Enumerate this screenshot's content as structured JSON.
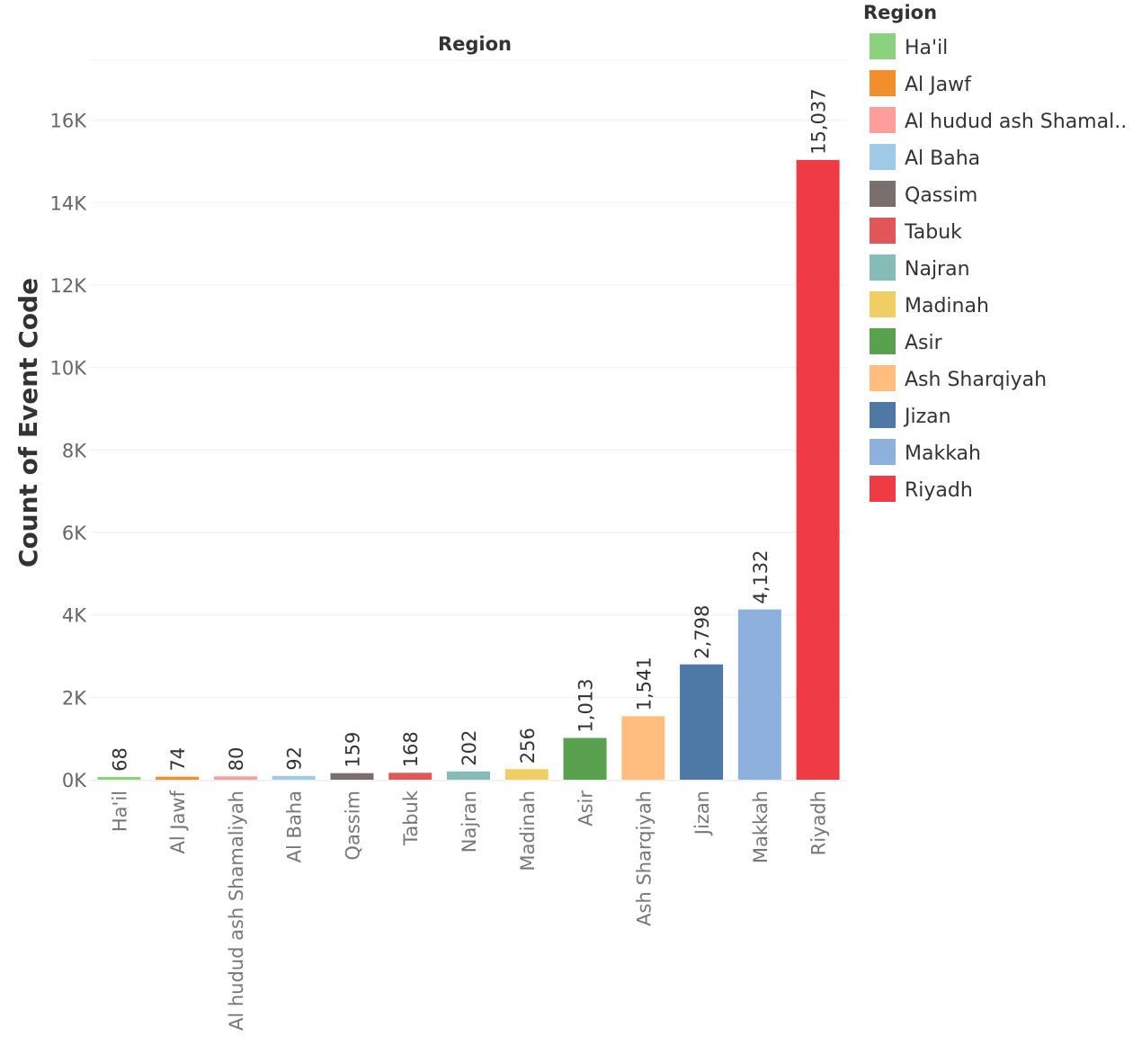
{
  "chart_data": {
    "type": "bar",
    "title": "Region",
    "xlabel": "",
    "ylabel": "Count of Event Code",
    "ylim": [
      0,
      17500
    ],
    "yticks": [
      0,
      2000,
      4000,
      6000,
      8000,
      10000,
      12000,
      14000,
      16000
    ],
    "ytick_labels": [
      "0K",
      "2K",
      "4K",
      "6K",
      "8K",
      "10K",
      "12K",
      "14K",
      "16K"
    ],
    "grid": true,
    "categories": [
      "Ha'il",
      "Al Jawf",
      "Al hudud ash Shamaliyah",
      "Al Baha",
      "Qassim",
      "Tabuk",
      "Najran",
      "Madinah",
      "Asir",
      "Ash Sharqiyah",
      "Jizan",
      "Makkah",
      "Riyadh"
    ],
    "values": [
      68,
      74,
      80,
      92,
      159,
      168,
      202,
      256,
      1013,
      1541,
      2798,
      4132,
      15037
    ],
    "value_labels": [
      "68",
      "74",
      "80",
      "92",
      "159",
      "168",
      "202",
      "256",
      "1,013",
      "1,541",
      "2,798",
      "4,132",
      "15,037"
    ],
    "colors": [
      "#8CD17D",
      "#F28E2B",
      "#FF9D9A",
      "#A0CBE8",
      "#79706E",
      "#E15759",
      "#86BCB6",
      "#F1CE63",
      "#59A14F",
      "#FFBE7D",
      "#4E79A7",
      "#8EB0DC",
      "#EE3B44"
    ],
    "legend": {
      "title": "Region",
      "position": "right",
      "items": [
        "Ha'il",
        "Al Jawf",
        "Al hudud ash Shamal..",
        "Al Baha",
        "Qassim",
        "Tabuk",
        "Najran",
        "Madinah",
        "Asir",
        "Ash Sharqiyah",
        "Jizan",
        "Makkah",
        "Riyadh"
      ]
    }
  }
}
